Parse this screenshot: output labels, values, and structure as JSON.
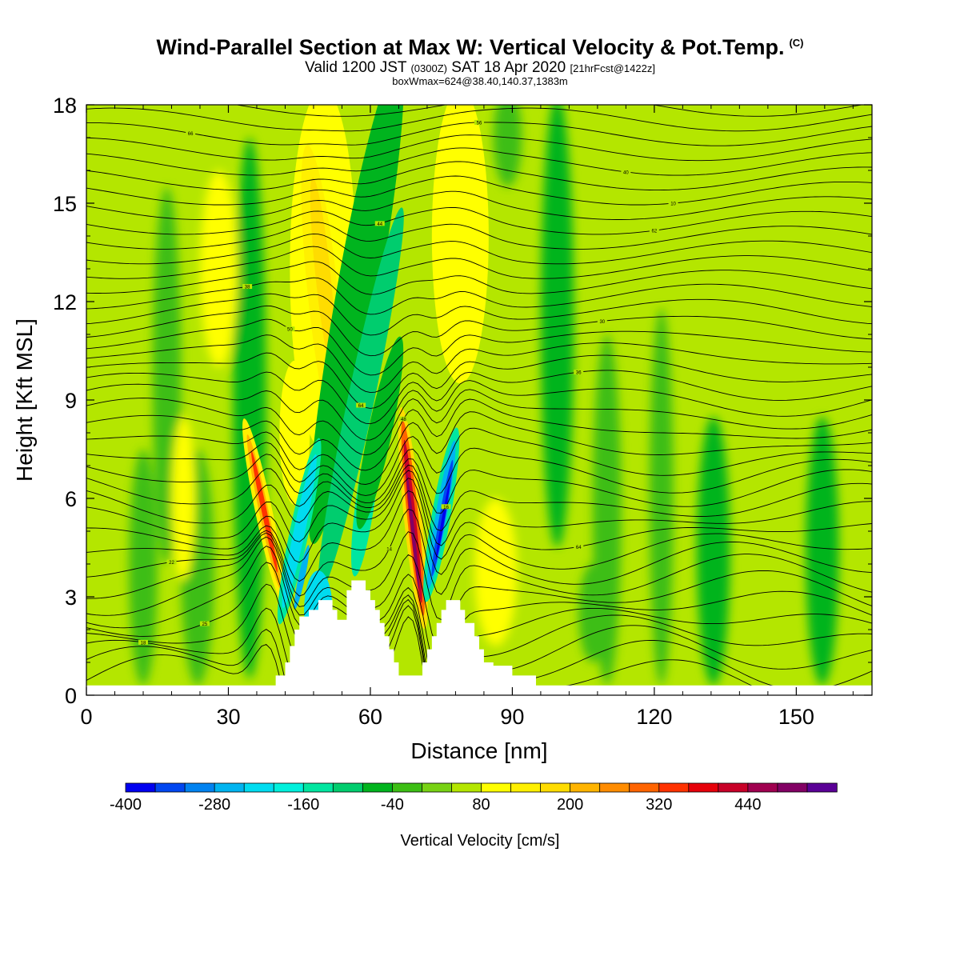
{
  "titles": {
    "main": "Wind-Parallel Section at Max W: Vertical Velocity & Pot.Temp.",
    "copyright_mark": "(C)",
    "valid_a": "Valid 1200 JST",
    "valid_utc": "(0300Z)",
    "valid_b": "SAT 18 Apr 2020",
    "forecast": "[21hrFcst@1422z]",
    "box": "boxWmax=624@38.40,140.37,1383m"
  },
  "chart_data": {
    "type": "heatmap",
    "xlabel": "Distance [nm]",
    "ylabel": "Height [Kft MSL]",
    "xlim": [
      0,
      166
    ],
    "ylim": [
      0,
      18
    ],
    "x_ticks": [
      0,
      30,
      60,
      90,
      120,
      150
    ],
    "y_ticks": [
      0,
      3,
      6,
      9,
      12,
      15,
      18
    ],
    "colorbar": {
      "label": "Vertical Velocity [cm/s]",
      "tick_labels": [
        -400,
        -280,
        -160,
        -40,
        80,
        200,
        320,
        440
      ],
      "levels": [
        -400,
        -360,
        -320,
        -280,
        -240,
        -200,
        -160,
        -120,
        -80,
        -40,
        0,
        40,
        80,
        120,
        160,
        200,
        240,
        280,
        320,
        360,
        400,
        440,
        480,
        520
      ],
      "colors": [
        "#0000f0",
        "#0046f0",
        "#0082f0",
        "#00b4f0",
        "#00dcf0",
        "#00f0dc",
        "#00e6a0",
        "#00cd6e",
        "#00b41e",
        "#3cbe14",
        "#78d214",
        "#b4e600",
        "#ffff00",
        "#fff000",
        "#ffdc00",
        "#ffb400",
        "#ff8c00",
        "#ff6400",
        "#ff3200",
        "#e6000a",
        "#c80028",
        "#a00050",
        "#820064",
        "#5a0096"
      ]
    },
    "velocity_features": [
      {
        "sign": "updraft",
        "x_nm": 69,
        "z_kft": [
          2.5,
          8.3
        ],
        "peak_cm_s": 480
      },
      {
        "sign": "updraft",
        "x_nm": 37.5,
        "z_kft": [
          3.2,
          8
        ],
        "peak_cm_s": 320
      },
      {
        "sign": "updraft",
        "x_nm": 49,
        "z_kft": [
          8,
          17
        ],
        "peak_cm_s": 200
      },
      {
        "sign": "updraft",
        "x_nm": 77,
        "z_kft": [
          11,
          18
        ],
        "peak_cm_s": 120
      },
      {
        "sign": "downdraft",
        "x_nm": 75,
        "z_kft": [
          3.5,
          8
        ],
        "peak_cm_s": -400
      },
      {
        "sign": "downdraft",
        "x_nm": 45,
        "z_kft": [
          2.5,
          7.5
        ],
        "peak_cm_s": -280
      },
      {
        "sign": "downdraft",
        "x_nm": 56,
        "z_kft": [
          4,
          18
        ],
        "peak_cm_s": -120
      }
    ],
    "theta_contour_labels": [
      "66",
      "44",
      "56",
      "40",
      "64",
      "38",
      "62",
      "50",
      "64",
      "30",
      "25",
      "48",
      "22",
      "36",
      "18",
      "16",
      "14",
      "10"
    ],
    "terrain_kft": [
      [
        40,
        0.3
      ],
      [
        40,
        0.6
      ],
      [
        42,
        0.6
      ],
      [
        42,
        1.0
      ],
      [
        43,
        1.0
      ],
      [
        43,
        1.5
      ],
      [
        44,
        1.5
      ],
      [
        44,
        2.0
      ],
      [
        45,
        2.0
      ],
      [
        45,
        2.4
      ],
      [
        47,
        2.4
      ],
      [
        47,
        2.6
      ],
      [
        49,
        2.6
      ],
      [
        49,
        2.9
      ],
      [
        52,
        2.9
      ],
      [
        52,
        2.6
      ],
      [
        53,
        2.6
      ],
      [
        53,
        2.3
      ],
      [
        55,
        2.3
      ],
      [
        55,
        3.2
      ],
      [
        56,
        3.2
      ],
      [
        56,
        3.5
      ],
      [
        59,
        3.5
      ],
      [
        59,
        3.2
      ],
      [
        60,
        3.2
      ],
      [
        60,
        2.9
      ],
      [
        61,
        2.9
      ],
      [
        61,
        2.6
      ],
      [
        62,
        2.6
      ],
      [
        62,
        2.2
      ],
      [
        63,
        2.2
      ],
      [
        63,
        1.8
      ],
      [
        64,
        1.8
      ],
      [
        64,
        1.4
      ],
      [
        65,
        1.4
      ],
      [
        65,
        1.0
      ],
      [
        66,
        1.0
      ],
      [
        66,
        0.6
      ],
      [
        71,
        0.6
      ],
      [
        71,
        1.0
      ],
      [
        72,
        1.0
      ],
      [
        72,
        1.4
      ],
      [
        73,
        1.4
      ],
      [
        73,
        1.8
      ],
      [
        74,
        1.8
      ],
      [
        74,
        2.2
      ],
      [
        75,
        2.2
      ],
      [
        75,
        2.6
      ],
      [
        76,
        2.6
      ],
      [
        76,
        2.9
      ],
      [
        79,
        2.9
      ],
      [
        79,
        2.6
      ],
      [
        80,
        2.6
      ],
      [
        80,
        2.2
      ],
      [
        82,
        2.2
      ],
      [
        82,
        1.8
      ],
      [
        83,
        1.8
      ],
      [
        83,
        1.4
      ],
      [
        84,
        1.4
      ],
      [
        84,
        1.0
      ],
      [
        86,
        1.0
      ],
      [
        86,
        0.9
      ],
      [
        90,
        0.9
      ],
      [
        90,
        0.6
      ],
      [
        95,
        0.6
      ],
      [
        95,
        0.3
      ],
      [
        166,
        0.3
      ]
    ]
  }
}
